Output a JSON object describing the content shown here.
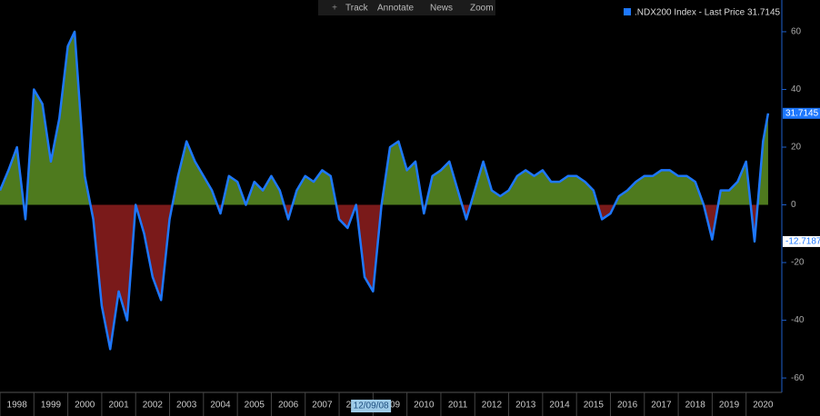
{
  "toolbar": [
    "Track",
    "Annotate",
    "News",
    "Zoom"
  ],
  "cursor_label": "12/09/08",
  "chart_data": {
    "type": "area",
    "x": [
      1998.0,
      1998.25,
      1998.5,
      1998.75,
      1999.0,
      1999.25,
      1999.5,
      1999.75,
      2000.0,
      2000.2,
      2000.5,
      2000.75,
      2001.0,
      2001.25,
      2001.5,
      2001.75,
      2002.0,
      2002.25,
      2002.5,
      2002.75,
      2003.0,
      2003.25,
      2003.5,
      2003.75,
      2004.0,
      2004.25,
      2004.5,
      2004.75,
      2005.0,
      2005.25,
      2005.5,
      2005.75,
      2006.0,
      2006.25,
      2006.5,
      2006.75,
      2007.0,
      2007.25,
      2007.5,
      2007.75,
      2008.0,
      2008.25,
      2008.5,
      2008.75,
      2009.0,
      2009.25,
      2009.5,
      2009.75,
      2010.0,
      2010.25,
      2010.5,
      2010.75,
      2011.0,
      2011.25,
      2011.5,
      2011.75,
      2012.0,
      2012.25,
      2012.5,
      2012.75,
      2013.0,
      2013.25,
      2013.5,
      2013.75,
      2014.0,
      2014.25,
      2014.5,
      2014.75,
      2015.0,
      2015.25,
      2015.5,
      2015.75,
      2016.0,
      2016.25,
      2016.5,
      2016.75,
      2017.0,
      2017.25,
      2017.5,
      2017.75,
      2018.0,
      2018.25,
      2018.5,
      2018.75,
      2019.0,
      2019.25,
      2019.5,
      2019.75,
      2020.0,
      2020.25,
      2020.5,
      2020.65
    ],
    "series": [
      {
        "name": ".NDX200 Index - Last Price 31.7145",
        "color": "#1e78ff",
        "pos_color": "#4e7a1e",
        "neg_color": "#7a1a1a",
        "values": [
          5,
          12,
          20,
          -5,
          40,
          35,
          15,
          30,
          55,
          60,
          10,
          -5,
          -35,
          -50,
          -30,
          -40,
          0,
          -10,
          -25,
          -33,
          -5,
          10,
          22,
          15,
          10,
          5,
          -3,
          10,
          8,
          0,
          8,
          5,
          10,
          5,
          -5,
          5,
          10,
          8,
          12,
          10,
          -5,
          -8,
          0,
          -25,
          -30,
          0,
          20,
          22,
          12,
          15,
          -3,
          10,
          12,
          15,
          5,
          -5,
          5,
          15,
          5,
          3,
          5,
          10,
          12,
          10,
          12,
          8,
          8,
          10,
          10,
          8,
          5,
          -5,
          -3,
          3,
          5,
          8,
          10,
          10,
          12,
          12,
          10,
          10,
          8,
          0,
          -12,
          5,
          5,
          8,
          15,
          -12.7187,
          22,
          31.7145
        ]
      }
    ],
    "markers": [
      {
        "value": 31.7145,
        "color": "#1e78ff",
        "text_color": "#ffffff"
      },
      {
        "value": -12.7187,
        "color": "#ffffff",
        "text_color": "#1e78ff"
      }
    ],
    "xlim": [
      1998,
      2021
    ],
    "xticks": [
      1998,
      1999,
      2000,
      2001,
      2002,
      2003,
      2004,
      2005,
      2006,
      2007,
      2008,
      2009,
      2010,
      2011,
      2012,
      2013,
      2014,
      2015,
      2016,
      2017,
      2018,
      2019,
      2020
    ],
    "cursor_x": 2008.94,
    "ylim": [
      -65,
      71
    ],
    "yticks": [
      -60,
      -40,
      -20,
      0,
      20,
      40,
      60
    ]
  }
}
